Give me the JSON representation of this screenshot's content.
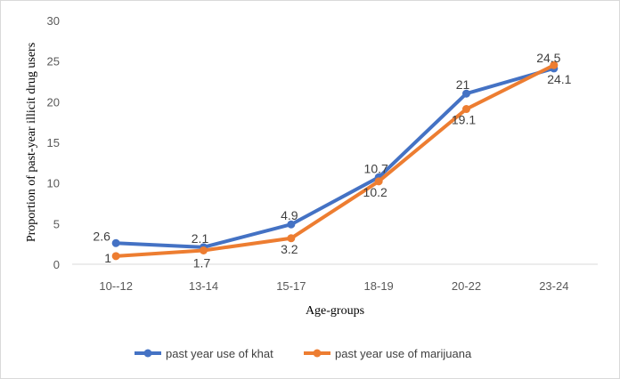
{
  "chart_data": {
    "type": "line",
    "categories": [
      "10--12",
      "13-14",
      "15-17",
      "18-19",
      "20-22",
      "23-24"
    ],
    "series": [
      {
        "name": "past year use of khat",
        "values": [
          2.6,
          2.1,
          4.9,
          10.7,
          21,
          24.1
        ],
        "labels": [
          "2.6",
          "2.1",
          "4.9",
          "10.7",
          "21",
          "24.1"
        ],
        "color": "#4472C4"
      },
      {
        "name": "past year use of marijuana",
        "values": [
          1,
          1.7,
          3.2,
          10.2,
          19.1,
          24.5
        ],
        "labels": [
          "1",
          "1.7",
          "3.2",
          "10.2",
          "19.1",
          "24.5"
        ],
        "color": "#ED7D31"
      }
    ],
    "xlabel": "Age-groups",
    "ylabel": "Proportion of past-year illicit drug users",
    "ylim": [
      0,
      30
    ],
    "yticks": [
      0,
      5,
      10,
      15,
      20,
      25,
      30
    ],
    "grid": false,
    "legend": "bottom"
  }
}
